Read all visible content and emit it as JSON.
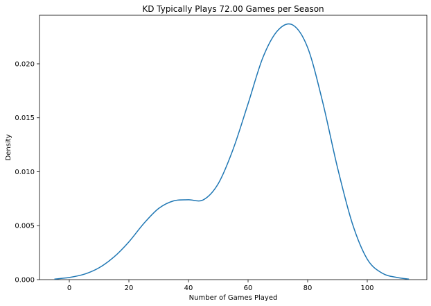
{
  "chart_data": {
    "type": "line",
    "title": "KD Typically Plays 72.00 Games per Season",
    "xlabel": "Number of Games Played",
    "ylabel": "Density",
    "xlim": [
      -10,
      120
    ],
    "ylim": [
      0,
      0.0245
    ],
    "xticks": [
      0,
      20,
      40,
      60,
      80,
      100
    ],
    "xtick_labels": [
      "0",
      "20",
      "40",
      "60",
      "80",
      "100"
    ],
    "yticks": [
      0.0,
      0.005,
      0.01,
      0.015,
      0.02
    ],
    "ytick_labels": [
      "0.000",
      "0.005",
      "0.010",
      "0.015",
      "0.020"
    ],
    "grid": false,
    "legend": "none",
    "series": [
      {
        "color": "#1f77b4",
        "x": [
          -5,
          0,
          5,
          10,
          15,
          20,
          25,
          30,
          35,
          40,
          45,
          50,
          55,
          60,
          65,
          70,
          75,
          80,
          85,
          90,
          95,
          100,
          105,
          110,
          114
        ],
        "values": [
          5e-05,
          0.0002,
          0.0005,
          0.0011,
          0.0021,
          0.0035,
          0.0052,
          0.0066,
          0.0073,
          0.0074,
          0.0074,
          0.0089,
          0.0121,
          0.0163,
          0.0206,
          0.0231,
          0.0236,
          0.0215,
          0.0165,
          0.0104,
          0.0052,
          0.0019,
          0.0006,
          0.0002,
          5e-05
        ]
      }
    ]
  }
}
